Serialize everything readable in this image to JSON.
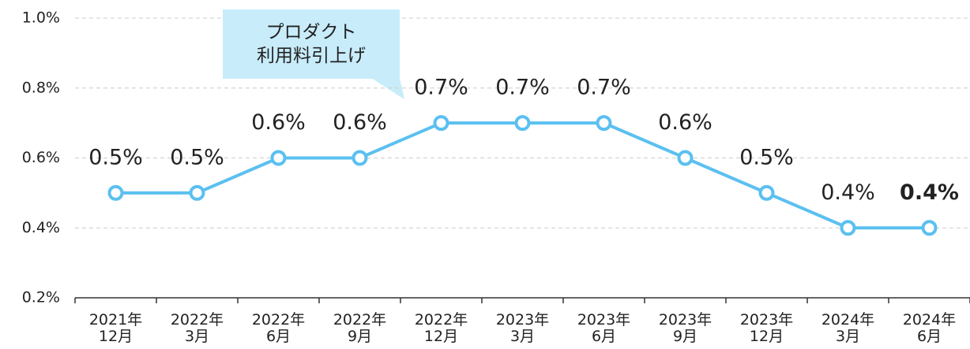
{
  "chart_data": {
    "type": "line",
    "categories": [
      "2021年\n12月",
      "2022年\n3月",
      "2022年\n6月",
      "2022年\n9月",
      "2022年\n12月",
      "2023年\n3月",
      "2023年\n6月",
      "2023年\n9月",
      "2023年\n12月",
      "2024年\n3月",
      "2024年\n6月"
    ],
    "values": [
      0.5,
      0.5,
      0.6,
      0.6,
      0.7,
      0.7,
      0.7,
      0.6,
      0.5,
      0.4,
      0.4
    ],
    "value_labels": [
      "0.5%",
      "0.5%",
      "0.6%",
      "0.6%",
      "0.7%",
      "0.7%",
      "0.7%",
      "0.6%",
      "0.5%",
      "0.4%",
      "0.4%"
    ],
    "value_label_colors": [
      "#222",
      "#222",
      "#222",
      "#222",
      "#222",
      "#222",
      "#222",
      "#222",
      "#222",
      "#222",
      "#1a4f9c"
    ],
    "color": "#5bc0f0",
    "ylim": [
      0.2,
      1.0
    ],
    "yticks": [
      {
        "value": 0.2,
        "label": "0.2%"
      },
      {
        "value": 0.4,
        "label": "0.4%"
      },
      {
        "value": 0.6,
        "label": "0.6%"
      },
      {
        "value": 0.8,
        "label": "0.8%"
      },
      {
        "value": 1.0,
        "label": "1.0%"
      }
    ],
    "grid": true,
    "annotation": "プロダクト\n利用料引上げ"
  }
}
